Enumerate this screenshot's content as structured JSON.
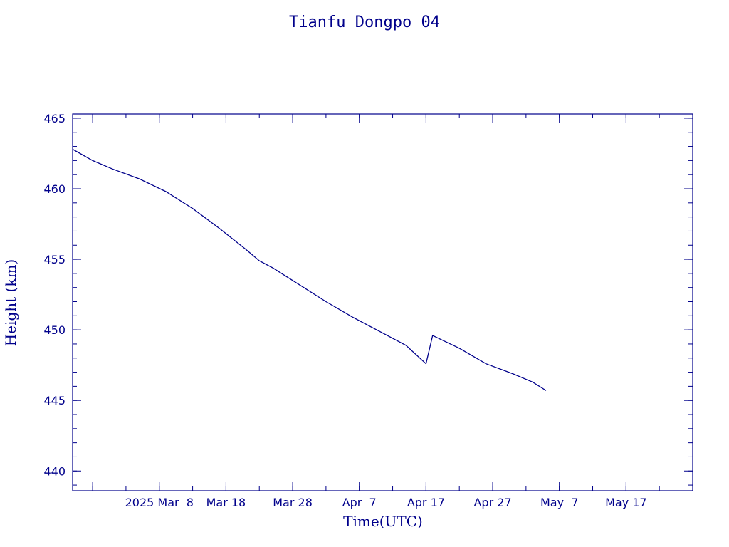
{
  "colors": {
    "ink": "#00008b",
    "background": "#ffffff"
  },
  "chart_data": {
    "type": "line",
    "title": "Tianfu Dongpo 04",
    "xlabel": "Time(UTC)",
    "ylabel": "Height (km)",
    "grid": false,
    "legend": "none",
    "x_axis": {
      "type": "date",
      "range": [
        "2025-02-23",
        "2025-05-27"
      ],
      "major_ticks": [
        {
          "date": "2025-02-26",
          "label": ""
        },
        {
          "date": "2025-03-08",
          "label": "2025 Mar  8"
        },
        {
          "date": "2025-03-18",
          "label": "Mar 18"
        },
        {
          "date": "2025-03-28",
          "label": "Mar 28"
        },
        {
          "date": "2025-04-07",
          "label": "Apr  7"
        },
        {
          "date": "2025-04-17",
          "label": "Apr 17"
        },
        {
          "date": "2025-04-27",
          "label": "Apr 27"
        },
        {
          "date": "2025-05-07",
          "label": "May  7"
        },
        {
          "date": "2025-05-17",
          "label": "May 17"
        }
      ],
      "minor_tick_days": 5
    },
    "y_axis": {
      "range": [
        438.6,
        465.3
      ],
      "major_ticks": [
        440,
        445,
        450,
        455,
        460,
        465
      ],
      "tick_labels": [
        "440",
        "445",
        "450",
        "455",
        "460",
        "465"
      ],
      "minor_step": 1
    },
    "series": [
      {
        "x": [
          "2025-02-23",
          "2025-02-26",
          "2025-03-01",
          "2025-03-05",
          "2025-03-09",
          "2025-03-13",
          "2025-03-17",
          "2025-03-21",
          "2025-03-23",
          "2025-03-25",
          "2025-03-29",
          "2025-04-02",
          "2025-04-06",
          "2025-04-10",
          "2025-04-14",
          "2025-04-17",
          "2025-04-18",
          "2025-04-22",
          "2025-04-26",
          "2025-04-30",
          "2025-05-03",
          "2025-05-05"
        ],
        "y": [
          462.8,
          462.0,
          461.4,
          460.7,
          459.8,
          458.6,
          457.2,
          455.7,
          454.9,
          454.4,
          453.2,
          452.0,
          450.9,
          449.9,
          448.9,
          447.6,
          449.6,
          448.7,
          447.6,
          446.9,
          446.3,
          445.7
        ]
      }
    ]
  }
}
